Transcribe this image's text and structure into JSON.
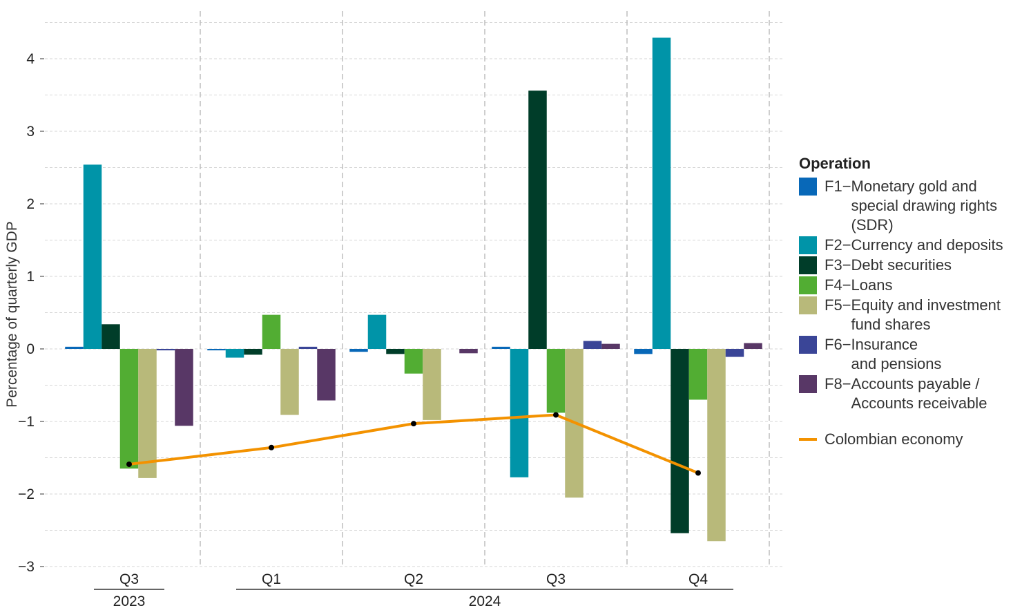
{
  "chart_data": {
    "type": "bar",
    "title": "",
    "ylabel": "Percentage of quarterly GDP",
    "xlabel": "",
    "ylim": [
      -3,
      4.5
    ],
    "yticks": [
      -3,
      -2,
      -1,
      0,
      1,
      2,
      3,
      4
    ],
    "ytick_labels": [
      "−3",
      "−2",
      "−1",
      "0",
      "1",
      "2",
      "3",
      "4"
    ],
    "grid": true,
    "legend_position": "right",
    "legend_title": "Operation",
    "categories": [
      "Q3",
      "Q1",
      "Q2",
      "Q3",
      "Q4"
    ],
    "year_groups": [
      {
        "label": "2023",
        "from": 0,
        "to": 0
      },
      {
        "label": "2024",
        "from": 1,
        "to": 4
      }
    ],
    "series": [
      {
        "code": "F1",
        "name": "Monetary gold and\nspecial drawing rights\n(SDR)",
        "color": "#0868b8",
        "values": [
          0.03,
          -0.02,
          -0.04,
          0.03,
          -0.07
        ]
      },
      {
        "code": "F2",
        "name": "Currency and deposits",
        "color": "#0094a8",
        "values": [
          2.54,
          -0.12,
          0.47,
          -1.77,
          4.29
        ]
      },
      {
        "code": "F3",
        "name": "Debt securities",
        "color": "#003d29",
        "values": [
          0.34,
          -0.08,
          -0.07,
          3.56,
          -2.54
        ]
      },
      {
        "code": "F4",
        "name": "Loans",
        "color": "#52ad33",
        "values": [
          -1.65,
          0.47,
          -0.34,
          -0.88,
          -0.7
        ]
      },
      {
        "code": "F5",
        "name": "Equity and investment\nfund shares",
        "color": "#b8b97a",
        "values": [
          -1.78,
          -0.91,
          -0.98,
          -2.05,
          -2.65
        ]
      },
      {
        "code": "F6",
        "name": "Insurance\nand pensions",
        "color": "#3a4597",
        "values": [
          -0.02,
          0.03,
          0.0,
          0.11,
          -0.11
        ]
      },
      {
        "code": "F8",
        "name": "Accounts payable /\nAccounts receivable",
        "color": "#583766",
        "values": [
          -1.06,
          -0.71,
          -0.06,
          0.07,
          0.08
        ]
      }
    ],
    "line": {
      "name": "Colombian economy",
      "color": "#f39200",
      "values": [
        -1.59,
        -1.36,
        -1.03,
        -0.91,
        -1.71
      ]
    }
  }
}
